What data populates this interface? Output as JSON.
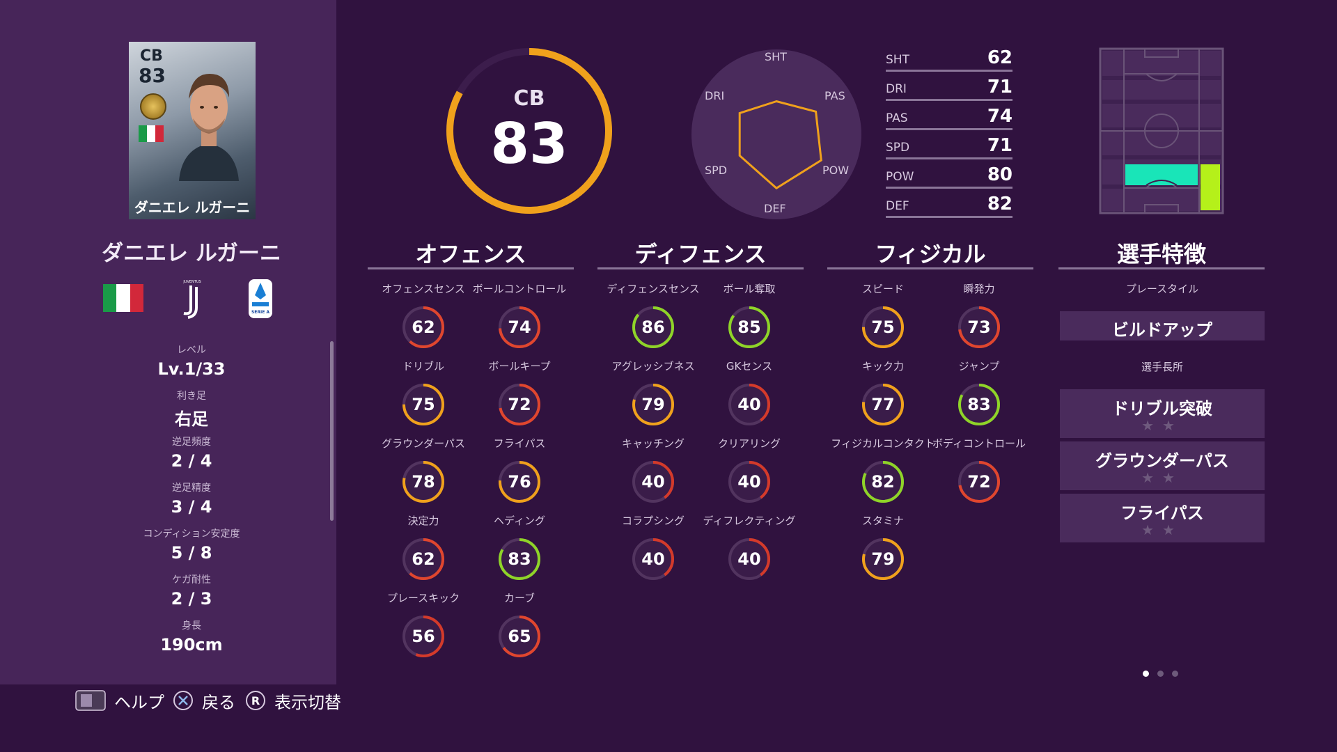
{
  "card": {
    "position": "CB",
    "overall": "83",
    "name": "ダニエレ ルガーニ"
  },
  "player": {
    "name": "ダニエレ ルガーニ"
  },
  "club": {
    "logo_text": "JUVENTUS"
  },
  "league": {
    "logo_text": "SERIE A"
  },
  "info": [
    {
      "label": "レベル",
      "value": "Lv.1/33"
    },
    {
      "label": "利き足",
      "value": "右足"
    },
    {
      "label": "逆足頻度",
      "value": "2 / 4"
    },
    {
      "label": "逆足精度",
      "value": "3 / 4"
    },
    {
      "label": "コンディション安定度",
      "value": "5 / 8"
    },
    {
      "label": "ケガ耐性",
      "value": "2 / 3"
    },
    {
      "label": "身長",
      "value": "190cm"
    }
  ],
  "overall": {
    "position": "CB",
    "value": "83",
    "ring_fraction": 0.83,
    "color": "#f0a11c"
  },
  "radar": {
    "labels": {
      "sht": "SHT",
      "pas": "PAS",
      "pow": "POW",
      "def": "DEF",
      "spd": "SPD",
      "dri": "DRI"
    },
    "values": {
      "SHT": 62,
      "PAS": 74,
      "POW": 80,
      "DEF": 82,
      "SPD": 71,
      "DRI": 71
    },
    "color": "#f0a11c"
  },
  "bars": [
    {
      "label": "SHT",
      "value": "62"
    },
    {
      "label": "DRI",
      "value": "71"
    },
    {
      "label": "PAS",
      "value": "74"
    },
    {
      "label": "SPD",
      "value": "71"
    },
    {
      "label": "POW",
      "value": "80"
    },
    {
      "label": "DEF",
      "value": "82"
    }
  ],
  "sections": {
    "offense": "オフェンス",
    "defense": "ディフェンス",
    "physical": "フィジカル",
    "features": "選手特徴"
  },
  "offense_stats": [
    {
      "label": "オフェンスセンス",
      "value": "62"
    },
    {
      "label": "ボールコントロール",
      "value": "74"
    },
    {
      "label": "ドリブル",
      "value": "75"
    },
    {
      "label": "ボールキープ",
      "value": "72"
    },
    {
      "label": "グラウンダーパス",
      "value": "78"
    },
    {
      "label": "フライパス",
      "value": "76"
    },
    {
      "label": "決定力",
      "value": "62"
    },
    {
      "label": "ヘディング",
      "value": "83"
    },
    {
      "label": "プレースキック",
      "value": "56"
    },
    {
      "label": "カーブ",
      "value": "65"
    }
  ],
  "defense_stats": [
    {
      "label": "ディフェンスセンス",
      "value": "86"
    },
    {
      "label": "ボール奪取",
      "value": "85"
    },
    {
      "label": "アグレッシブネス",
      "value": "79"
    },
    {
      "label": "GKセンス",
      "value": "40"
    },
    {
      "label": "キャッチング",
      "value": "40"
    },
    {
      "label": "クリアリング",
      "value": "40"
    },
    {
      "label": "コラプシング",
      "value": "40"
    },
    {
      "label": "ディフレクティング",
      "value": "40"
    }
  ],
  "physical_stats": [
    {
      "label": "スピード",
      "value": "75"
    },
    {
      "label": "瞬発力",
      "value": "73"
    },
    {
      "label": "キック力",
      "value": "77"
    },
    {
      "label": "ジャンプ",
      "value": "83"
    },
    {
      "label": "フィジカルコンタクト",
      "value": "82"
    },
    {
      "label": "ボディコントロール",
      "value": "72"
    },
    {
      "label": "スタミナ",
      "value": "79"
    }
  ],
  "features": {
    "playstyle_label": "プレースタイル",
    "playstyle": "ビルドアップ",
    "skills_label": "選手長所",
    "skills": [
      "ドリブル突破",
      "グラウンダーパス",
      "フライパス"
    ],
    "star_text": "★★"
  },
  "colors": {
    "high": "#8fd428",
    "good": "#f0a11c",
    "mid": "#e0462e",
    "low": "#d43a2a"
  },
  "footer": {
    "help": "ヘルプ",
    "back": "戻る",
    "toggle": "表示切替",
    "r_glyph": "R"
  }
}
